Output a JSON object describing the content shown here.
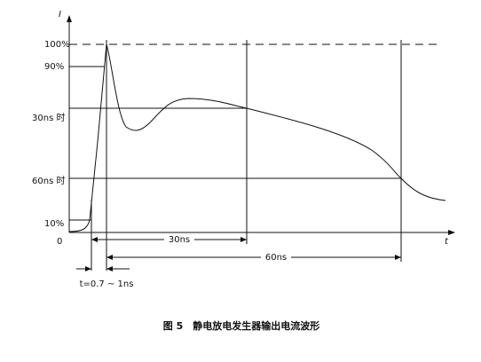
{
  "axis": {
    "y_label": "I",
    "x_label": "t",
    "origin": "0"
  },
  "levels": [
    "100%",
    "90%",
    "30ns 时",
    "60ns 时",
    "10%"
  ],
  "dimensions": {
    "d30": "30ns",
    "d60": "60ns",
    "rise": "t=0.7 ~ 1ns"
  },
  "caption": "图 5　静电放电发生器输出电流波形"
}
